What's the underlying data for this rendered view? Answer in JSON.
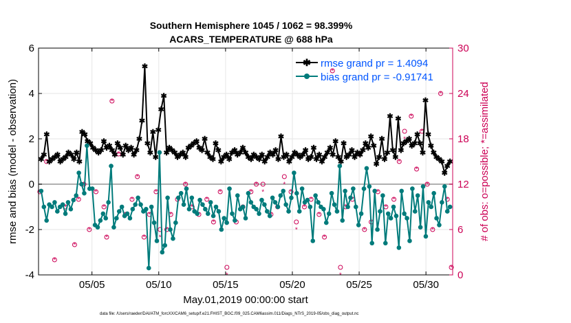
{
  "chart_data": {
    "type": "line",
    "title": [
      "Southern Hemisphere 1045 / 1062 = 98.399%",
      "ACARS_TEMPERATURE @ 688 hPa"
    ],
    "xlabel": "May.01,2019 00:00:00 start",
    "ylabel": "rmse and bias (model - observation)",
    "y2label": "# of obs: o=possible; *=assimilated",
    "footer": "data file: /Users/raeder/DAI/ATM_forcXX/CAM6_setup/f.e21.FHIST_BGC.f09_025.CAM6assim.011/Diags_NTrS_2019-05/obs_diag_output.nc",
    "xlim": [
      1,
      32
    ],
    "ylim": [
      -4,
      6
    ],
    "y2lim": [
      0,
      30
    ],
    "x_ticks": [
      5,
      10,
      15,
      20,
      25,
      30
    ],
    "x_tick_labels": [
      "05/05",
      "05/10",
      "05/15",
      "05/20",
      "05/25",
      "05/30"
    ],
    "y_ticks": [
      -4,
      -2,
      0,
      2,
      4,
      6
    ],
    "y2_ticks": [
      0,
      6,
      12,
      18,
      24,
      30
    ],
    "zero_line": 0,
    "series": [
      {
        "name": "rmse grand pr = 1.4094",
        "color": "#000000",
        "marker": "asterisk",
        "values": [
          1.1,
          1.3,
          2.2,
          1.0,
          1.1,
          1.2,
          1.3,
          1.0,
          1.1,
          1.2,
          1.4,
          1.3,
          1.1,
          1.4,
          1.0,
          2.3,
          2.2,
          1.9,
          1.8,
          1.6,
          1.5,
          1.4,
          1.5,
          1.9,
          1.6,
          1.7,
          1.5,
          1.3,
          1.8,
          1.6,
          1.3,
          1.7,
          1.5,
          1.6,
          1.3,
          1.5,
          2.0,
          2.8,
          5.2,
          1.8,
          1.4,
          2.3,
          1.2,
          2.4,
          3.3,
          3.9,
          1.4,
          1.6,
          1.5,
          1.4,
          1.2,
          1.3,
          1.4,
          1.2,
          1.6,
          1.7,
          1.8,
          1.9,
          1.6,
          1.5,
          2.0,
          1.4,
          1.2,
          1.1,
          1.8,
          1.5,
          1.0,
          1.2,
          1.3,
          1.1,
          1.4,
          1.5,
          1.3,
          1.4,
          1.6,
          1.4,
          1.2,
          1.1,
          1.3,
          1.2,
          1.1,
          1.3,
          1.0,
          1.2,
          1.4,
          1.3,
          1.5,
          1.1,
          2.1,
          1.2,
          1.3,
          1.0,
          1.2,
          1.4,
          1.3,
          1.2,
          1.3,
          1.5,
          1.1,
          1.2,
          1.6,
          1.1,
          1.3,
          1.0,
          1.2,
          1.4,
          1.6,
          1.3,
          1.9,
          1.2,
          1.0,
          1.8,
          1.2,
          1.3,
          1.5,
          1.2,
          1.4,
          1.3,
          1.5,
          1.8,
          1.6,
          2.1,
          1.7,
          0.9,
          1.2,
          2.0,
          1.1,
          1.4,
          3.0,
          1.5,
          1.2,
          2.9,
          1.5,
          1.8,
          1.9,
          2.0,
          1.7,
          1.8,
          2.2,
          1.8,
          1.4,
          3.7,
          2.2,
          1.7,
          1.4,
          1.2,
          1.1,
          1.0,
          0.5,
          0.8,
          1.0
        ]
      },
      {
        "name": "bias grand pr = -0.91741",
        "color": "#007b7b",
        "marker": "dot",
        "values": [
          -0.3,
          -1.0,
          -1.6,
          -0.9,
          -1.0,
          -0.8,
          -1.2,
          -1.0,
          -0.9,
          -1.3,
          -0.8,
          -1.1,
          -0.7,
          -0.5,
          0.5,
          0.0,
          -0.4,
          1.7,
          -0.2,
          -0.2,
          -1.8,
          -1.9,
          -1.6,
          -1.3,
          -1.5,
          -0.8,
          0.8,
          -1.9,
          -1.5,
          -1.2,
          -1.0,
          -1.4,
          -1.3,
          -1.5,
          -1.1,
          -0.9,
          -0.6,
          -0.9,
          -1.2,
          -1.1,
          -3.7,
          -1.0,
          -1.7,
          -2.5,
          1.4,
          -3.0,
          -2.7,
          -0.6,
          -2.0,
          -2.4,
          -1.7,
          -0.6,
          -0.4,
          -0.9,
          -0.2,
          -1.1,
          -0.6,
          -1.2,
          -1.3,
          -0.7,
          -0.9,
          -1.1,
          -1.3,
          -0.8,
          -1.4,
          -1.0,
          -1.2,
          -2.0,
          -1.5,
          -1.7,
          -0.2,
          -1.3,
          -1.6,
          -0.5,
          -1.1,
          -1.0,
          -1.5,
          -0.4,
          -0.8,
          -1.0,
          -1.1,
          -1.3,
          -0.7,
          -0.9,
          -1.2,
          -1.4,
          -0.6,
          -0.8,
          -1.0,
          -0.5,
          -0.3,
          -0.9,
          -1.2,
          -0.6,
          0.5,
          -0.4,
          -1.2,
          -0.2,
          -0.8,
          -0.7,
          -1.0,
          -2.5,
          -0.5,
          -0.8,
          -1.0,
          -1.1,
          -1.7,
          -1.3,
          -0.4,
          -0.9,
          -1.2,
          0.8,
          -1.6,
          -0.3,
          -1.0,
          -0.6,
          -0.2,
          -1.0,
          -1.8,
          -1.3,
          -0.2,
          0.7,
          -0.1,
          -2.6,
          -0.3,
          -2.0,
          -1.2,
          -0.5,
          -2.6,
          -1.3,
          -1.5,
          -1.0,
          -1.4,
          -2.8,
          -0.3,
          -1.3,
          -1.5,
          -2.5,
          -0.2,
          -1.2,
          -0.5,
          -1.9,
          -0.1,
          -2.3,
          -0.8,
          -1.0,
          -0.4,
          -1.5,
          -1.8,
          -0.8,
          -0.1,
          -1.2,
          -1.0
        ]
      }
    ],
    "obs_possible": {
      "label": "o=possible",
      "color": "#cc0055",
      "x": [
        1.1,
        1.6,
        2.2,
        3.0,
        3.7,
        4.0,
        4.4,
        4.8,
        5.3,
        5.9,
        6.1,
        6.5,
        7.0,
        7.5,
        8.0,
        8.4,
        8.9,
        9.3,
        9.8,
        10.1,
        10.6,
        10.9,
        11.4,
        12.0,
        12.5,
        13.0,
        13.6,
        14.1,
        14.6,
        15.1,
        15.8,
        16.3,
        16.9,
        17.3,
        17.8,
        18.4,
        18.9,
        19.4,
        19.9,
        20.3,
        20.9,
        21.4,
        22.0,
        22.4,
        23.0,
        23.6,
        24.0,
        24.5,
        25.0,
        25.4,
        25.9,
        26.4,
        27.0,
        27.6,
        28.0,
        28.4,
        28.9,
        29.3,
        29.7,
        30.1,
        30.5,
        31.1,
        31.6,
        31.9
      ],
      "y": [
        11,
        15,
        2,
        9,
        4,
        10,
        12,
        6,
        11,
        9,
        5,
        23,
        16,
        8,
        10,
        13,
        5,
        8,
        11,
        6,
        6,
        8,
        10,
        12,
        9,
        8,
        10,
        7,
        11,
        1,
        7,
        9,
        11,
        12,
        12,
        8,
        9,
        13,
        11,
        7,
        9,
        10,
        8,
        5,
        27,
        1,
        9,
        10,
        16,
        6,
        7,
        11,
        9,
        10,
        15,
        19,
        21,
        14,
        19,
        12,
        6,
        24,
        10,
        1
      ]
    },
    "obs_assimilated": {
      "label": "*=assimilated",
      "color": "#cc0055",
      "x": [
        1.1,
        1.6,
        2.2,
        3.0,
        3.7,
        4.0,
        4.4,
        4.8,
        5.3,
        5.9,
        6.1,
        6.5,
        7.0,
        7.5,
        8.0,
        8.4,
        8.9,
        9.3,
        9.8,
        10.1,
        10.6,
        10.9,
        11.4,
        12.0,
        12.5,
        13.0,
        13.6,
        14.1,
        14.6,
        15.1,
        15.8,
        16.3,
        16.9,
        17.3,
        17.8,
        18.4,
        18.9,
        19.4,
        19.9,
        20.3,
        20.9,
        21.4,
        22.0,
        22.4,
        23.0,
        23.6,
        24.0,
        24.5,
        25.0,
        25.4,
        25.9,
        26.4,
        27.0,
        27.6,
        28.0,
        28.4,
        28.9,
        29.3,
        29.7,
        30.1,
        30.5,
        31.1,
        31.6,
        31.9
      ],
      "y": [
        11,
        15,
        2,
        9,
        4,
        10,
        12,
        6,
        11,
        9,
        5,
        23,
        16,
        8,
        10,
        13,
        5,
        8,
        11,
        5,
        6,
        8,
        10,
        12,
        9,
        8,
        10,
        7,
        11,
        0,
        7,
        9,
        11,
        12,
        11,
        8,
        9,
        12,
        11,
        6,
        9,
        10,
        8,
        5,
        27,
        0,
        9,
        10,
        16,
        6,
        7,
        11,
        9,
        10,
        15,
        18,
        21,
        14,
        19,
        12,
        6,
        24,
        10,
        1
      ]
    },
    "legend": {
      "placement": "top-right",
      "rmse_text": "rmse grand pr = 1.4094",
      "bias_text": "bias grand pr = -0.91741",
      "text_color": "#0055ff"
    },
    "colors": {
      "axis_left": "#000000",
      "axis_right": "#cc0055",
      "zero_line": "#b0b0b0",
      "grid": "#e6e6e6"
    }
  }
}
